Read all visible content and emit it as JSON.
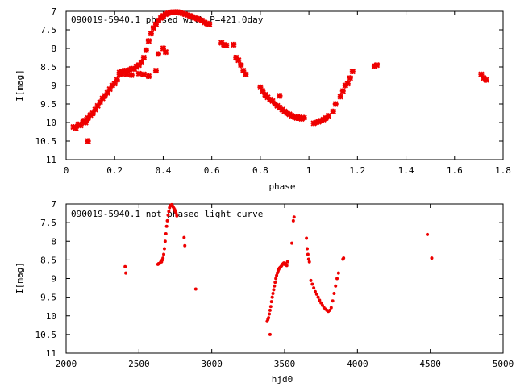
{
  "chart_data": [
    {
      "type": "scatter",
      "title": "090019-5940.1 phased with P=421.0day",
      "xlabel": "phase",
      "ylabel": "I[mag]",
      "xlim": [
        0,
        1.8
      ],
      "ylim": [
        11,
        7
      ],
      "y_inverted": true,
      "grid": false,
      "legend": "none",
      "marker": "star",
      "color": "#ee0000",
      "xticks": [
        "0",
        "0.2",
        "0.4",
        "0.6",
        "0.8",
        "1",
        "1.2",
        "1.4",
        "1.6",
        "1.8"
      ],
      "yticks": [
        "7",
        "7.5",
        "8",
        "8.5",
        "9",
        "9.5",
        "10",
        "10.5",
        "11"
      ],
      "series": [
        {
          "x": [
            0.03,
            0.04,
            0.05,
            0.06,
            0.07,
            0.08,
            0.085,
            0.09,
            0.1,
            0.11,
            0.12,
            0.13,
            0.14,
            0.15,
            0.16,
            0.17,
            0.18,
            0.19,
            0.2,
            0.21,
            0.22,
            0.22,
            0.23,
            0.24,
            0.25,
            0.26,
            0.27,
            0.28,
            0.29,
            0.3,
            0.31,
            0.32,
            0.33,
            0.34,
            0.35,
            0.36,
            0.37,
            0.38,
            0.39,
            0.4,
            0.41,
            0.42,
            0.43,
            0.44,
            0.45,
            0.46,
            0.47,
            0.48,
            0.49,
            0.5,
            0.51,
            0.52,
            0.53,
            0.54,
            0.55,
            0.56,
            0.57,
            0.58,
            0.59,
            0.37,
            0.38,
            0.4,
            0.41,
            0.23,
            0.25,
            0.27,
            0.3,
            0.32,
            0.34,
            0.09,
            0.64,
            0.65,
            0.66,
            0.69,
            0.7,
            0.71,
            0.72,
            0.73,
            0.74,
            0.8,
            0.81,
            0.82,
            0.83,
            0.84,
            0.85,
            0.86,
            0.87,
            0.88,
            0.89,
            0.9,
            0.91,
            0.92,
            0.93,
            0.94,
            0.95,
            0.96,
            0.97,
            0.98,
            0.88,
            1.02,
            1.03,
            1.04,
            1.05,
            1.06,
            1.07,
            1.08,
            1.1,
            1.11,
            1.13,
            1.14,
            1.15,
            1.16,
            1.17,
            1.18,
            1.27,
            1.28,
            1.71,
            1.72,
            1.73
          ],
          "y": [
            10.12,
            10.15,
            10.05,
            10.08,
            9.95,
            10.0,
            9.92,
            9.88,
            9.8,
            9.75,
            9.65,
            9.55,
            9.45,
            9.35,
            9.28,
            9.2,
            9.1,
            9.0,
            8.95,
            8.85,
            8.7,
            8.65,
            8.62,
            8.6,
            8.6,
            8.58,
            8.55,
            8.55,
            8.5,
            8.45,
            8.38,
            8.25,
            8.05,
            7.8,
            7.6,
            7.45,
            7.35,
            7.25,
            7.18,
            7.12,
            7.08,
            7.05,
            7.03,
            7.02,
            7.02,
            7.02,
            7.04,
            7.06,
            7.08,
            7.1,
            7.12,
            7.15,
            7.18,
            7.2,
            7.22,
            7.25,
            7.3,
            7.33,
            7.35,
            8.6,
            8.15,
            8.0,
            8.1,
            8.68,
            8.7,
            8.72,
            8.68,
            8.7,
            8.75,
            10.5,
            7.85,
            7.9,
            7.92,
            7.9,
            8.25,
            8.32,
            8.45,
            8.6,
            8.7,
            9.05,
            9.15,
            9.25,
            9.32,
            9.38,
            9.42,
            9.5,
            9.55,
            9.6,
            9.65,
            9.7,
            9.75,
            9.78,
            9.82,
            9.85,
            9.88,
            9.86,
            9.9,
            9.87,
            9.28,
            10.02,
            10.0,
            9.98,
            9.95,
            9.92,
            9.88,
            9.82,
            9.7,
            9.5,
            9.3,
            9.15,
            9.0,
            8.95,
            8.8,
            8.62,
            8.48,
            8.45,
            8.7,
            8.8,
            8.85
          ]
        }
      ]
    },
    {
      "type": "scatter",
      "title": "090019-5940.1 not phased light curve",
      "xlabel": "hjd0",
      "ylabel": "I[mag]",
      "xlim": [
        2000,
        5000
      ],
      "ylim": [
        11,
        7
      ],
      "y_inverted": true,
      "grid": false,
      "legend": "none",
      "marker": "dot",
      "color": "#ee0000",
      "xticks": [
        "2000",
        "2500",
        "3000",
        "3500",
        "4000",
        "4500",
        "5000"
      ],
      "yticks": [
        "7",
        "7.5",
        "8",
        "8.5",
        "9",
        "9.5",
        "10",
        "10.5",
        "11"
      ],
      "series": [
        {
          "x": [
            2405,
            2410,
            2630,
            2635,
            2640,
            2645,
            2650,
            2655,
            2660,
            2665,
            2670,
            2675,
            2680,
            2685,
            2690,
            2695,
            2700,
            2705,
            2710,
            2715,
            2720,
            2725,
            2730,
            2735,
            2740,
            2745,
            2750,
            2755,
            2760,
            2810,
            2815,
            2890,
            3380,
            3385,
            3390,
            3395,
            3400,
            3405,
            3410,
            3415,
            3420,
            3425,
            3430,
            3435,
            3440,
            3445,
            3450,
            3455,
            3460,
            3465,
            3470,
            3475,
            3480,
            3485,
            3490,
            3495,
            3500,
            3505,
            3510,
            3515,
            3520,
            3400,
            3550,
            3560,
            3565,
            3650,
            3655,
            3660,
            3665,
            3670,
            3680,
            3690,
            3700,
            3710,
            3720,
            3730,
            3740,
            3750,
            3760,
            3770,
            3780,
            3790,
            3800,
            3810,
            3820,
            3830,
            3840,
            3850,
            3860,
            3870,
            3900,
            3905,
            4480,
            4510
          ],
          "y": [
            8.68,
            8.85,
            8.62,
            8.6,
            8.6,
            8.58,
            8.55,
            8.55,
            8.5,
            8.45,
            8.35,
            8.2,
            8.0,
            7.8,
            7.6,
            7.45,
            7.3,
            7.2,
            7.1,
            7.05,
            7.03,
            7.02,
            7.05,
            7.08,
            7.12,
            7.15,
            7.2,
            7.25,
            7.32,
            7.9,
            8.12,
            9.28,
            10.15,
            10.1,
            10.05,
            9.95,
            9.85,
            9.75,
            9.62,
            9.5,
            9.4,
            9.3,
            9.2,
            9.1,
            9.0,
            8.92,
            8.85,
            8.8,
            8.75,
            8.72,
            8.7,
            8.68,
            8.65,
            8.62,
            8.6,
            8.58,
            8.62,
            8.6,
            8.63,
            8.65,
            8.55,
            10.5,
            8.05,
            7.45,
            7.35,
            7.92,
            8.2,
            8.35,
            8.48,
            8.55,
            9.05,
            9.15,
            9.25,
            9.35,
            9.42,
            9.5,
            9.58,
            9.65,
            9.72,
            9.78,
            9.82,
            9.85,
            9.88,
            9.85,
            9.78,
            9.6,
            9.4,
            9.2,
            9.0,
            8.85,
            8.48,
            8.45,
            7.82,
            8.45
          ]
        }
      ]
    }
  ]
}
